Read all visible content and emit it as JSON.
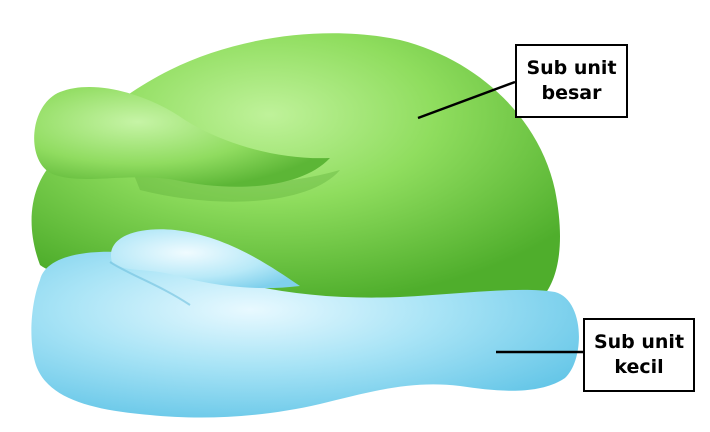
{
  "labels": {
    "large_subunit": {
      "line1": "Sub unit",
      "line2": "besar"
    },
    "small_subunit": {
      "line1": "Sub unit",
      "line2": "kecil"
    }
  },
  "colors": {
    "large_subunit": "#7ed957",
    "small_subunit": "#9fdcf0",
    "line": "#000000"
  }
}
